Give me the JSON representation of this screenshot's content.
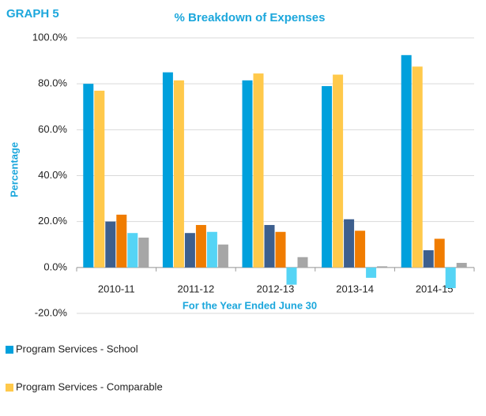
{
  "chart_data": {
    "type": "bar",
    "label": "GRAPH 5",
    "title": "% Breakdown of Expenses",
    "x_label": "For the Year Ended June 30",
    "y_label": "Percentage",
    "categories": [
      "2010-11",
      "2011-12",
      "2012-13",
      "2013-14",
      "2014-15"
    ],
    "series": [
      {
        "name": "Program Services - School",
        "color": "#00a0dc",
        "values": [
          80,
          85,
          81.5,
          79,
          92.5
        ]
      },
      {
        "name": "Program Services - Comparable",
        "color": "#ffc94b",
        "values": [
          77,
          81.5,
          84.5,
          84,
          87.5
        ]
      },
      {
        "color": "#3d5f8e",
        "values": [
          20,
          15,
          18.5,
          21,
          7.5
        ]
      },
      {
        "color": "#f07c00",
        "values": [
          23,
          18.5,
          15.5,
          16,
          12.5
        ]
      },
      {
        "color": "#55d4f5",
        "values": [
          15,
          15.5,
          -7.5,
          -4.5,
          -9
        ]
      },
      {
        "color": "#a6a6a6",
        "values": [
          13,
          10,
          4.5,
          0.5,
          2
        ]
      }
    ],
    "ylim": [
      -20,
      100
    ],
    "yticks": [
      {
        "value": -20,
        "label": "-20.0%"
      },
      {
        "value": 0,
        "label": "0.0%"
      },
      {
        "value": 20,
        "label": "20.0%"
      },
      {
        "value": 40,
        "label": "40.0%"
      },
      {
        "value": 60,
        "label": "60.0%"
      },
      {
        "value": 80,
        "label": "80.0%"
      },
      {
        "value": 100,
        "label": "100.0%"
      }
    ],
    "grid": true
  }
}
